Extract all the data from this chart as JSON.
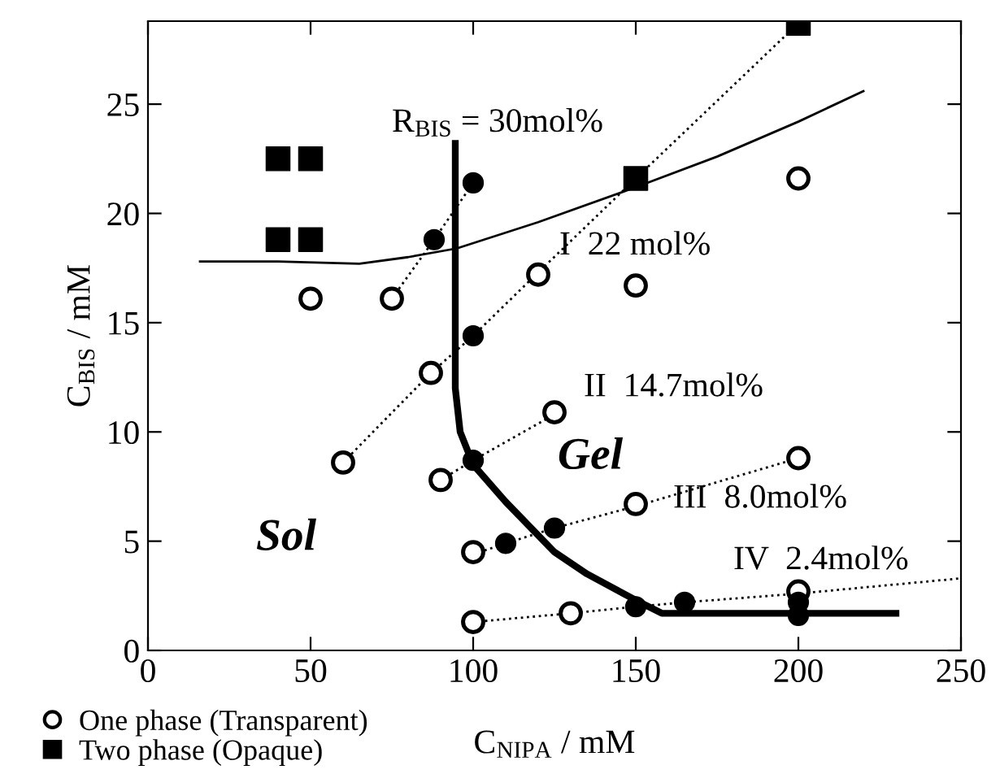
{
  "chart_data": {
    "type": "scatter",
    "xlabel": "C$_{NIPA}$ / mM",
    "ylabel": "C$_{BIS}$ / mM",
    "xlim": [
      0,
      250
    ],
    "ylim": [
      0,
      28.8
    ],
    "xticks": [
      0,
      50,
      100,
      150,
      200,
      250
    ],
    "yticks": [
      0,
      5,
      10,
      15,
      20,
      25
    ],
    "grid": false,
    "legend": "bottom left",
    "series": [
      {
        "type": "line",
        "line_style": "dotted",
        "marker": "none",
        "color": "#000000",
        "x": [
          60,
          87,
          100,
          120,
          150,
          200
        ],
        "values": [
          8.6,
          12.7,
          14.4,
          17.3,
          21.6,
          28.7
        ]
      },
      {
        "type": "line",
        "line_style": "dotted",
        "marker": "none",
        "color": "#000000",
        "x": [
          75,
          88,
          100
        ],
        "values": [
          16.1,
          18.8,
          21.4
        ]
      },
      {
        "type": "line",
        "line_style": "dotted",
        "marker": "none",
        "color": "#000000",
        "x": [
          90,
          100,
          125
        ],
        "values": [
          7.8,
          8.7,
          10.8
        ]
      },
      {
        "type": "line",
        "line_style": "dotted",
        "marker": "none",
        "color": "#000000",
        "x": [
          100,
          110,
          125,
          150,
          200
        ],
        "values": [
          4.4,
          4.9,
          5.6,
          6.6,
          8.8
        ]
      },
      {
        "type": "line",
        "line_style": "dotted",
        "marker": "none",
        "color": "#000000",
        "x": [
          100,
          130,
          150,
          165,
          200,
          250
        ],
        "values": [
          1.3,
          1.7,
          2.0,
          2.2,
          2.6,
          3.3
        ]
      },
      {
        "type": "line",
        "line_style": "solid",
        "marker": "none",
        "color": "#000000",
        "x": [
          16,
          40,
          65,
          80,
          95,
          120,
          150,
          175,
          200,
          220
        ],
        "values": [
          17.8,
          17.8,
          17.7,
          18.0,
          18.4,
          19.6,
          21.2,
          22.6,
          24.2,
          25.6
        ]
      },
      {
        "type": "line",
        "line_style": "solid",
        "marker": "none",
        "color": "#000000",
        "x": [
          94.5,
          94.5,
          96,
          100,
          110,
          125,
          135,
          150,
          158,
          230
        ],
        "values": [
          23.2,
          12,
          10,
          8.5,
          6.8,
          4.5,
          3.5,
          2.3,
          1.7,
          1.7
        ]
      },
      {
        "name": "One phase (Transparent)",
        "marker": "circle",
        "color": "#ffffff",
        "x": [
          50,
          75,
          87,
          60,
          90,
          100,
          100,
          120,
          125,
          150,
          150,
          130,
          200,
          200,
          200
        ],
        "values": [
          16.1,
          16.1,
          12.7,
          8.6,
          7.8,
          4.5,
          1.3,
          17.2,
          10.9,
          16.7,
          6.7,
          1.7,
          8.8,
          2.7,
          21.6
        ]
      },
      {
        "name": "Two phase (Opaque)",
        "marker": "square",
        "color": "#000000",
        "x": [
          40,
          50,
          40,
          50,
          150,
          200
        ],
        "values": [
          22.5,
          22.5,
          18.8,
          18.8,
          21.6,
          28.7
        ]
      },
      {
        "marker": "circle",
        "color": "#000000",
        "x": [
          100,
          88,
          100,
          100,
          110,
          125,
          150,
          165,
          200,
          200
        ],
        "values": [
          21.4,
          18.8,
          14.4,
          8.7,
          4.9,
          5.6,
          2.0,
          2.2,
          2.2,
          1.6
        ]
      }
    ],
    "annotations": [
      "R$_{BIS}$ = 30mol%",
      "I  22 mol%",
      "II  14.7mol%",
      "III  8.0mol%",
      "IV  2.4mol%",
      "Sol",
      "Gel"
    ]
  }
}
